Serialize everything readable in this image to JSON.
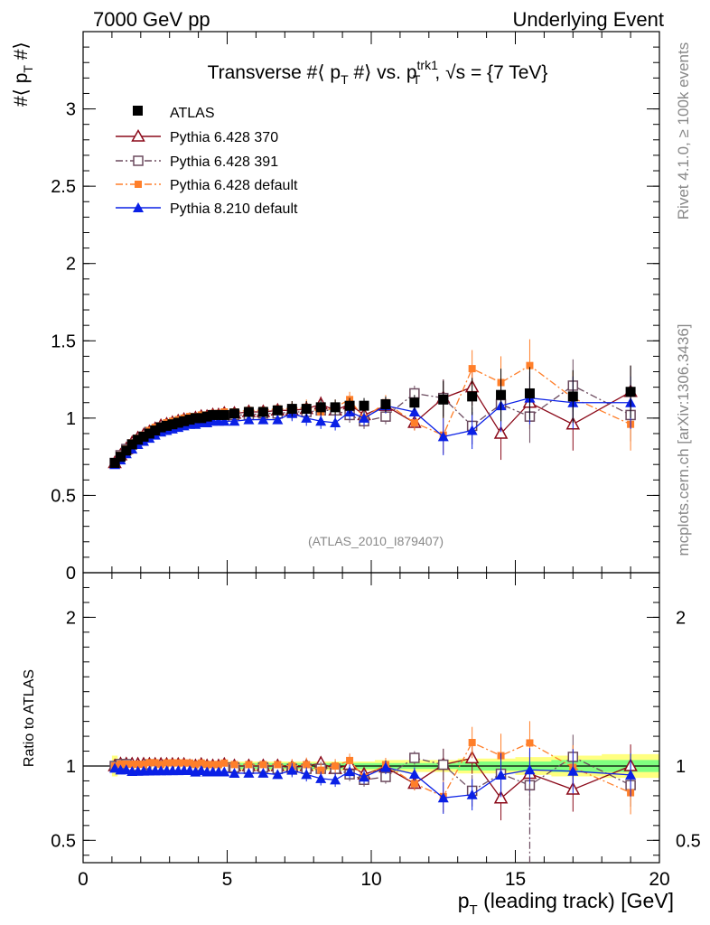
{
  "header": {
    "left": "7000 GeV pp",
    "right": "Underlying Event"
  },
  "side_labels": {
    "rivet": "Rivet 4.1.0, ≥ 100k events",
    "mcplots": "mcplots.cern.ch [arXiv:1306.3436]"
  },
  "colors": {
    "atlas": "#000000",
    "p370": "#8b0a1a",
    "p391": "#6b4a5e",
    "p6def": "#ff7f2a",
    "p8": "#0a20e6",
    "band_yellow": "#ffff80",
    "band_green": "#80ff80"
  },
  "chart_data": [
    {
      "type": "scatter",
      "title": "Transverse #⟨ p_T #⟩ vs. p_T^trk1, √s = {7 TeV}",
      "title_parts": {
        "pre": "Transverse #⟨ p",
        "sub1": "T",
        "mid": " #⟩ vs. p",
        "sup": "trk1",
        "sub2": "T",
        "post": ", √s = {7 TeV}"
      },
      "ylabel": "#⟨ p_T #⟩",
      "ylabel_parts": {
        "main": "#⟨ p",
        "sub": "T",
        "post": " #⟩"
      },
      "watermark": "(ATLAS_2010_I879407)",
      "xlim": [
        0,
        20
      ],
      "ylim": [
        0,
        3.5
      ],
      "y_ticks": [
        0,
        0.5,
        1,
        1.5,
        2,
        2.5,
        3
      ],
      "y_tick_labels": [
        "0",
        "0.5",
        "1",
        "1.5",
        "2",
        "2.5",
        "3"
      ],
      "legend": [
        {
          "name": "ATLAS",
          "key": "atlas"
        },
        {
          "name": "Pythia 6.428 370",
          "key": "p370"
        },
        {
          "name": "Pythia 6.428 391",
          "key": "p391"
        },
        {
          "name": "Pythia 6.428 default",
          "key": "p6def"
        },
        {
          "name": "Pythia 8.210 default",
          "key": "p8"
        }
      ],
      "x": [
        1.1,
        1.3,
        1.5,
        1.7,
        1.9,
        2.1,
        2.3,
        2.5,
        2.7,
        2.9,
        3.1,
        3.3,
        3.5,
        3.7,
        3.9,
        4.1,
        4.3,
        4.5,
        4.7,
        4.9,
        5.25,
        5.75,
        6.25,
        6.75,
        7.25,
        7.75,
        8.25,
        8.75,
        9.25,
        9.75,
        10.5,
        11.5,
        12.5,
        13.5,
        14.5,
        15.5,
        17.0,
        19.0
      ],
      "series": [
        {
          "name": "ATLAS",
          "key": "atlas",
          "marker": "square-filled",
          "values": [
            0.71,
            0.75,
            0.79,
            0.83,
            0.86,
            0.88,
            0.9,
            0.92,
            0.94,
            0.95,
            0.96,
            0.97,
            0.98,
            0.99,
            1.0,
            1.0,
            1.01,
            1.02,
            1.02,
            1.02,
            1.03,
            1.04,
            1.04,
            1.05,
            1.06,
            1.06,
            1.07,
            1.07,
            1.08,
            1.08,
            1.09,
            1.1,
            1.12,
            1.14,
            1.15,
            1.16,
            1.14,
            1.17
          ]
        },
        {
          "name": "Pythia 6.428 370",
          "key": "p370",
          "marker": "triangle-open",
          "values": [
            0.71,
            0.76,
            0.8,
            0.84,
            0.87,
            0.89,
            0.91,
            0.93,
            0.95,
            0.96,
            0.97,
            0.98,
            0.99,
            0.99,
            1.0,
            1.01,
            1.01,
            1.02,
            1.02,
            1.03,
            1.03,
            1.04,
            1.04,
            1.05,
            1.05,
            1.06,
            1.09,
            1.05,
            1.09,
            1.02,
            1.08,
            0.97,
            1.13,
            1.2,
            0.9,
            1.1,
            0.96,
            1.17
          ]
        },
        {
          "name": "Pythia 6.428 391",
          "key": "p391",
          "marker": "square-open",
          "values": [
            0.71,
            0.76,
            0.8,
            0.83,
            0.86,
            0.88,
            0.91,
            0.92,
            0.94,
            0.95,
            0.96,
            0.97,
            0.98,
            0.99,
            0.99,
            1.0,
            1.0,
            1.01,
            1.01,
            1.01,
            1.02,
            1.02,
            1.03,
            1.03,
            1.04,
            1.04,
            1.05,
            1.05,
            1.02,
            0.98,
            1.01,
            1.16,
            1.13,
            0.95,
            1.09,
            1.01,
            1.21,
            1.02
          ]
        },
        {
          "name": "Pythia 6.428 default",
          "key": "p6def",
          "marker": "square-filled-small",
          "values": [
            0.71,
            0.76,
            0.8,
            0.84,
            0.87,
            0.89,
            0.92,
            0.94,
            0.95,
            0.97,
            0.98,
            0.99,
            1.0,
            1.01,
            1.01,
            1.02,
            1.02,
            1.03,
            1.03,
            1.04,
            1.04,
            1.05,
            1.05,
            1.06,
            1.06,
            1.07,
            1.04,
            1.07,
            1.12,
            1.0,
            1.1,
            0.97,
            0.89,
            1.32,
            1.23,
            1.34,
            1.13,
            0.96
          ]
        },
        {
          "name": "Pythia 8.210 default",
          "key": "p8",
          "marker": "triangle-filled",
          "values": [
            0.7,
            0.73,
            0.77,
            0.8,
            0.83,
            0.85,
            0.87,
            0.89,
            0.91,
            0.92,
            0.93,
            0.94,
            0.95,
            0.96,
            0.96,
            0.97,
            0.97,
            0.98,
            0.98,
            0.98,
            0.98,
            0.99,
            0.99,
            0.99,
            1.03,
            1.0,
            0.98,
            0.97,
            1.04,
            1.0,
            1.08,
            1.04,
            0.88,
            0.92,
            1.08,
            1.13,
            1.1,
            1.1
          ]
        }
      ]
    },
    {
      "type": "scatter",
      "title": "",
      "ylabel": "Ratio to ATLAS",
      "xlabel": "p_T (leading track) [GeV]",
      "xlabel_parts": {
        "main": "p",
        "sub": "T",
        "post": " (leading track) [GeV]"
      },
      "xlim": [
        0,
        20
      ],
      "ylim": [
        0.35,
        2.3
      ],
      "x_ticks": [
        0,
        5,
        10,
        15,
        20
      ],
      "x_tick_labels": [
        "0",
        "5",
        "10",
        "15",
        "20"
      ],
      "y_ticks": [
        0.5,
        1,
        2
      ],
      "y_tick_labels": [
        "0.5",
        "1",
        "2"
      ],
      "reference_line": 1,
      "band_yellow_halfwidth": [
        0.07,
        0.04,
        0.03,
        0.03,
        0.03,
        0.03,
        0.03,
        0.03,
        0.03,
        0.03,
        0.03,
        0.03,
        0.03,
        0.03,
        0.03,
        0.03,
        0.03,
        0.03,
        0.03,
        0.03,
        0.03,
        0.03,
        0.03,
        0.03,
        0.03,
        0.03,
        0.03,
        0.03,
        0.03,
        0.03,
        0.04,
        0.04,
        0.04,
        0.05,
        0.05,
        0.06,
        0.07,
        0.08
      ],
      "band_green_halfwidth": [
        0.03,
        0.02,
        0.02,
        0.02,
        0.02,
        0.02,
        0.02,
        0.02,
        0.02,
        0.02,
        0.02,
        0.02,
        0.02,
        0.02,
        0.02,
        0.02,
        0.02,
        0.02,
        0.02,
        0.02,
        0.02,
        0.02,
        0.02,
        0.02,
        0.02,
        0.02,
        0.02,
        0.02,
        0.02,
        0.02,
        0.02,
        0.02,
        0.02,
        0.03,
        0.03,
        0.03,
        0.04,
        0.04
      ]
    }
  ]
}
